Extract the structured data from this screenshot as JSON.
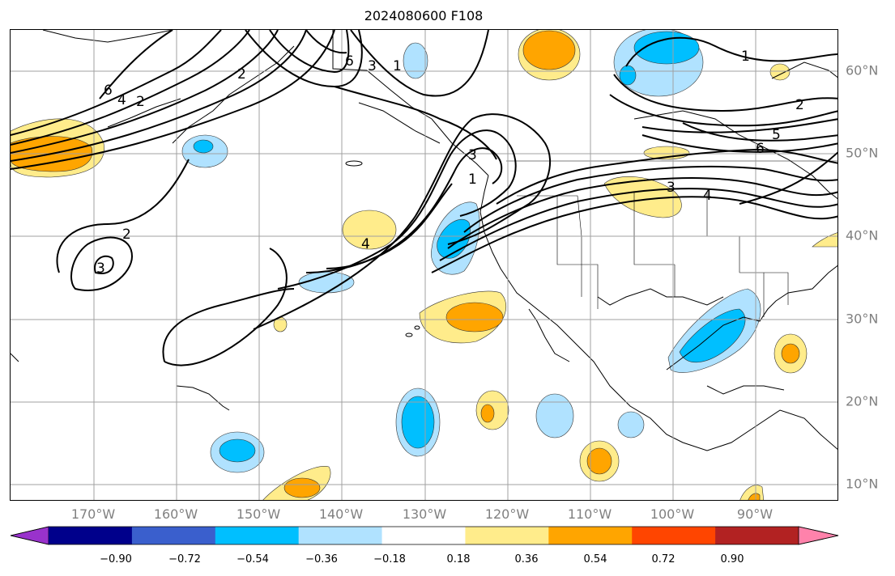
{
  "title": "2024080600 F108",
  "longitude_labels": [
    "170°W",
    "160°W",
    "150°W",
    "140°W",
    "130°W",
    "120°W",
    "110°W",
    "100°W",
    "90°W"
  ],
  "latitude_labels": [
    "60°N",
    "50°N",
    "40°N",
    "30°N",
    "20°N",
    "10°N"
  ],
  "colorbar": {
    "tick_labels": [
      "−0.90",
      "−0.72",
      "−0.54",
      "−0.36",
      "−0.18",
      "0.18",
      "0.36",
      "0.54",
      "0.72",
      "0.90"
    ],
    "colors": [
      "#9932cc",
      "#00008b",
      "#3a5fcd",
      "#00bfff",
      "#b0e2ff",
      "#ffffff",
      "#ffec8b",
      "#ffa500",
      "#ff4500",
      "#b22222",
      "#ff82ab"
    ]
  },
  "contour_labels": [
    "6",
    "4",
    "2",
    "2",
    "3",
    "6",
    "3",
    "1",
    "1",
    "2",
    "6",
    "5",
    "4",
    "3",
    "4",
    "3",
    "2",
    "1"
  ],
  "colors": {
    "negative_light": "#b0e2ff",
    "negative_strong": "#00bfff",
    "positive_light": "#ffec8b",
    "positive_strong": "#ffa500",
    "grid": "#a0a0a0",
    "contour": "#000000"
  }
}
